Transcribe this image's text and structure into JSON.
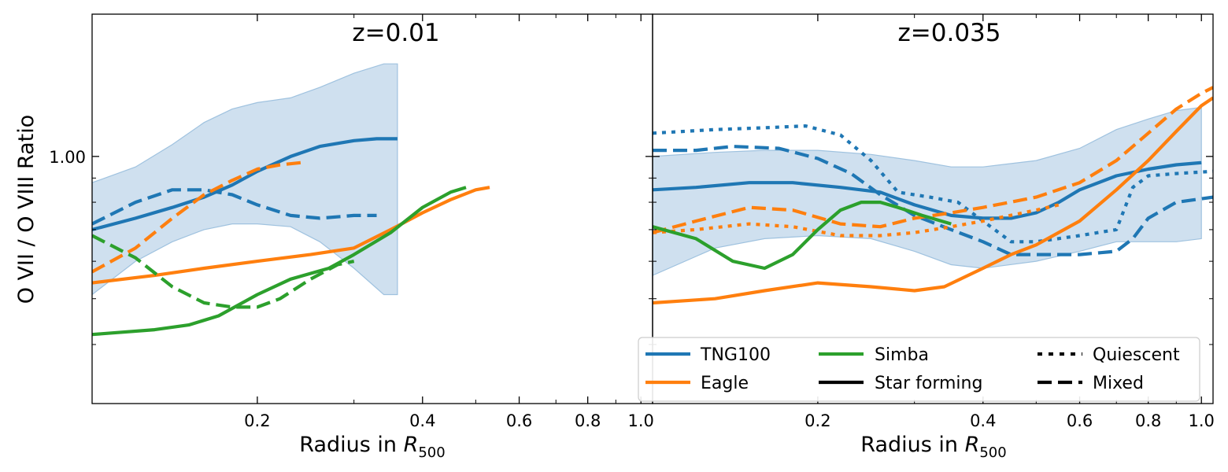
{
  "figure": {
    "ylabel": "O VII / O VIII  Ratio",
    "xlabel_main": "Radius in ",
    "xlabel_sym": "R",
    "xlabel_sub": "500"
  },
  "colors": {
    "TNG100": "#1f77b4",
    "Eagle": "#ff7f0e",
    "Simba": "#2ca02c",
    "band": "#cfe0ef",
    "band_edge": "#9fc2df"
  },
  "legend": {
    "entries": [
      {
        "label": "TNG100",
        "color": "#1f77b4",
        "style": "solid"
      },
      {
        "label": "Eagle",
        "color": "#ff7f0e",
        "style": "solid"
      },
      {
        "label": "Simba",
        "color": "#2ca02c",
        "style": "solid"
      },
      {
        "label": "Star forming",
        "color": "#000000",
        "style": "solid"
      },
      {
        "label": "Quiescent",
        "color": "#000000",
        "style": "dotted"
      },
      {
        "label": "Mixed",
        "color": "#000000",
        "style": "dashed"
      }
    ],
    "placement": "lower-right"
  },
  "chart_data": [
    {
      "type": "line",
      "title": "z=0.01",
      "xscale": "log",
      "yscale": "log",
      "xlim": [
        0.1,
        1.05
      ],
      "ylim": [
        0.3,
        2.0
      ],
      "xticks": [
        0.2,
        0.4,
        0.6,
        0.8,
        1.0
      ],
      "xticklabels": [
        "0.2",
        "0.4",
        "0.6",
        "0.8",
        "1.0"
      ],
      "yticks": [
        1.0
      ],
      "yticklabels": [
        "1.00"
      ],
      "band": {
        "x": [
          0.1,
          0.12,
          0.14,
          0.16,
          0.18,
          0.2,
          0.23,
          0.26,
          0.3,
          0.34,
          0.36
        ],
        "upper": [
          0.88,
          0.95,
          1.06,
          1.18,
          1.26,
          1.3,
          1.33,
          1.4,
          1.5,
          1.57,
          1.57
        ],
        "lower": [
          0.51,
          0.6,
          0.66,
          0.7,
          0.72,
          0.72,
          0.71,
          0.66,
          0.58,
          0.51,
          0.51
        ]
      },
      "series": [
        {
          "sim": "TNG100",
          "style": "solid",
          "x": [
            0.1,
            0.12,
            0.14,
            0.16,
            0.18,
            0.2,
            0.23,
            0.26,
            0.3,
            0.33,
            0.36
          ],
          "y": [
            0.7,
            0.74,
            0.78,
            0.82,
            0.87,
            0.93,
            1.0,
            1.05,
            1.08,
            1.09,
            1.09
          ]
        },
        {
          "sim": "TNG100",
          "style": "dashed",
          "x": [
            0.1,
            0.12,
            0.14,
            0.16,
            0.18,
            0.2,
            0.23,
            0.26,
            0.3,
            0.33
          ],
          "y": [
            0.72,
            0.8,
            0.85,
            0.85,
            0.83,
            0.79,
            0.75,
            0.74,
            0.75,
            0.75
          ]
        },
        {
          "sim": "Eagle",
          "style": "solid",
          "x": [
            0.1,
            0.13,
            0.16,
            0.2,
            0.25,
            0.3,
            0.35,
            0.4,
            0.45,
            0.5,
            0.53
          ],
          "y": [
            0.54,
            0.56,
            0.58,
            0.6,
            0.62,
            0.64,
            0.7,
            0.76,
            0.81,
            0.85,
            0.86
          ]
        },
        {
          "sim": "Eagle",
          "style": "dashed",
          "x": [
            0.1,
            0.12,
            0.14,
            0.16,
            0.18,
            0.2,
            0.22,
            0.24
          ],
          "y": [
            0.57,
            0.64,
            0.74,
            0.83,
            0.89,
            0.94,
            0.96,
            0.97
          ]
        },
        {
          "sim": "Simba",
          "style": "solid",
          "x": [
            0.1,
            0.13,
            0.15,
            0.17,
            0.2,
            0.23,
            0.27,
            0.3,
            0.35,
            0.4,
            0.45,
            0.48
          ],
          "y": [
            0.42,
            0.43,
            0.44,
            0.46,
            0.51,
            0.55,
            0.58,
            0.62,
            0.69,
            0.78,
            0.84,
            0.86
          ]
        },
        {
          "sim": "Simba",
          "style": "dashed",
          "x": [
            0.1,
            0.12,
            0.14,
            0.16,
            0.18,
            0.2,
            0.22,
            0.25,
            0.28,
            0.3
          ],
          "y": [
            0.68,
            0.61,
            0.53,
            0.49,
            0.48,
            0.48,
            0.5,
            0.55,
            0.59,
            0.6
          ]
        }
      ]
    },
    {
      "type": "line",
      "title": "z=0.035",
      "xscale": "log",
      "yscale": "log",
      "xlim": [
        0.1,
        1.05
      ],
      "ylim": [
        0.3,
        2.0
      ],
      "xticks": [
        0.2,
        0.4,
        0.6,
        0.8,
        1.0
      ],
      "xticklabels": [
        "0.2",
        "0.4",
        "0.6",
        "0.8",
        "1.0"
      ],
      "yticks": [
        1.0
      ],
      "yticklabels": [],
      "band": {
        "x": [
          0.1,
          0.13,
          0.16,
          0.2,
          0.25,
          0.3,
          0.35,
          0.4,
          0.5,
          0.6,
          0.7,
          0.8,
          0.9,
          1.0
        ],
        "upper": [
          1.0,
          1.02,
          1.03,
          1.03,
          1.01,
          0.98,
          0.95,
          0.95,
          0.98,
          1.04,
          1.14,
          1.2,
          1.25,
          1.27
        ],
        "lower": [
          0.56,
          0.64,
          0.67,
          0.68,
          0.67,
          0.63,
          0.59,
          0.58,
          0.6,
          0.63,
          0.66,
          0.66,
          0.66,
          0.67
        ]
      },
      "series": [
        {
          "sim": "TNG100",
          "style": "solid",
          "x": [
            0.1,
            0.12,
            0.15,
            0.18,
            0.22,
            0.26,
            0.3,
            0.35,
            0.4,
            0.45,
            0.5,
            0.55,
            0.6,
            0.7,
            0.8,
            0.9,
            1.0
          ],
          "y": [
            0.85,
            0.86,
            0.88,
            0.88,
            0.86,
            0.84,
            0.79,
            0.75,
            0.74,
            0.74,
            0.76,
            0.8,
            0.85,
            0.91,
            0.94,
            0.96,
            0.97
          ]
        },
        {
          "sim": "TNG100",
          "style": "dotted",
          "x": [
            0.1,
            0.13,
            0.16,
            0.19,
            0.22,
            0.25,
            0.28,
            0.32,
            0.36,
            0.4,
            0.45,
            0.5,
            0.6,
            0.7,
            0.75,
            0.8,
            0.9,
            1.05
          ],
          "y": [
            1.12,
            1.14,
            1.15,
            1.16,
            1.11,
            0.98,
            0.84,
            0.82,
            0.8,
            0.73,
            0.66,
            0.66,
            0.68,
            0.7,
            0.86,
            0.91,
            0.92,
            0.93
          ]
        },
        {
          "sim": "TNG100",
          "style": "dashed",
          "x": [
            0.1,
            0.12,
            0.14,
            0.17,
            0.2,
            0.23,
            0.26,
            0.3,
            0.35,
            0.4,
            0.45,
            0.5,
            0.6,
            0.7,
            0.75,
            0.8,
            0.9,
            1.05
          ],
          "y": [
            1.03,
            1.03,
            1.05,
            1.04,
            0.99,
            0.92,
            0.83,
            0.75,
            0.7,
            0.66,
            0.62,
            0.62,
            0.62,
            0.63,
            0.67,
            0.74,
            0.8,
            0.82
          ]
        },
        {
          "sim": "Eagle",
          "style": "solid",
          "x": [
            0.1,
            0.13,
            0.16,
            0.2,
            0.25,
            0.3,
            0.34,
            0.4,
            0.45,
            0.5,
            0.6,
            0.7,
            0.8,
            0.9,
            1.0,
            1.05
          ],
          "y": [
            0.49,
            0.5,
            0.52,
            0.54,
            0.53,
            0.52,
            0.53,
            0.58,
            0.62,
            0.65,
            0.73,
            0.85,
            0.98,
            1.13,
            1.28,
            1.33
          ]
        },
        {
          "sim": "Eagle",
          "style": "dashed",
          "x": [
            0.1,
            0.12,
            0.15,
            0.18,
            0.22,
            0.26,
            0.3,
            0.35,
            0.4,
            0.5,
            0.6,
            0.7,
            0.8,
            0.9,
            1.0,
            1.05
          ],
          "y": [
            0.69,
            0.73,
            0.78,
            0.77,
            0.72,
            0.71,
            0.74,
            0.76,
            0.78,
            0.82,
            0.88,
            0.98,
            1.12,
            1.26,
            1.36,
            1.4
          ]
        },
        {
          "sim": "Eagle",
          "style": "dotted",
          "x": [
            0.1,
            0.12,
            0.15,
            0.18,
            0.22,
            0.26,
            0.3,
            0.35,
            0.4,
            0.5,
            0.55
          ],
          "y": [
            0.69,
            0.7,
            0.72,
            0.71,
            0.68,
            0.68,
            0.69,
            0.71,
            0.73,
            0.77,
            0.79
          ]
        },
        {
          "sim": "Simba",
          "style": "solid",
          "x": [
            0.1,
            0.12,
            0.14,
            0.16,
            0.18,
            0.2,
            0.22,
            0.24,
            0.26,
            0.28,
            0.31,
            0.35
          ],
          "y": [
            0.71,
            0.67,
            0.6,
            0.58,
            0.62,
            0.7,
            0.77,
            0.8,
            0.8,
            0.78,
            0.75,
            0.72
          ]
        }
      ]
    }
  ]
}
